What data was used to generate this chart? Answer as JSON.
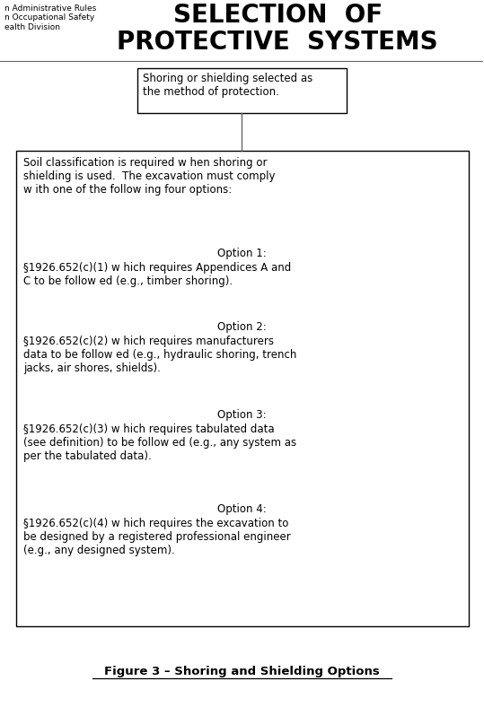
{
  "title_line1": "SELECTION  OF",
  "title_line2": "PROTECTIVE  SYSTEMS",
  "header_left": "n Administrative Rules\nn Occupational Safety\nealth Division",
  "top_box_text": "Shoring or shielding selected as\nthe method of protection.",
  "main_box_intro": "Soil classification is required w hen shoring or\nshielding is used.  The excavation must comply\nw ith one of the follow ing four options:",
  "option1_title": "Option 1:",
  "option1_text": "§1926.652(c)(1) w hich requires Appendices A and\nC to be follow ed (e.g., timber shoring).",
  "option2_title": "Option 2:",
  "option2_text": "§1926.652(c)(2) w hich requires manufacturers\ndata to be follow ed (e.g., hydraulic shoring, trench\njacks, air shores, shields).",
  "option3_title": "Option 3:",
  "option3_text": "§1926.652(c)(3) w hich requires tabulated data\n(see definition) to be follow ed (e.g., any system as\nper the tabulated data).",
  "option4_title": "Option 4:",
  "option4_text": "§1926.652(c)(4) w hich requires the excavation to\nbe designed by a registered professional engineer\n(e.g., any designed system).",
  "figure_caption": "Figure 3 – Shoring and Shielding Options",
  "bg_color": "#ffffff",
  "text_color": "#000000",
  "box_edge_color": "#000000"
}
